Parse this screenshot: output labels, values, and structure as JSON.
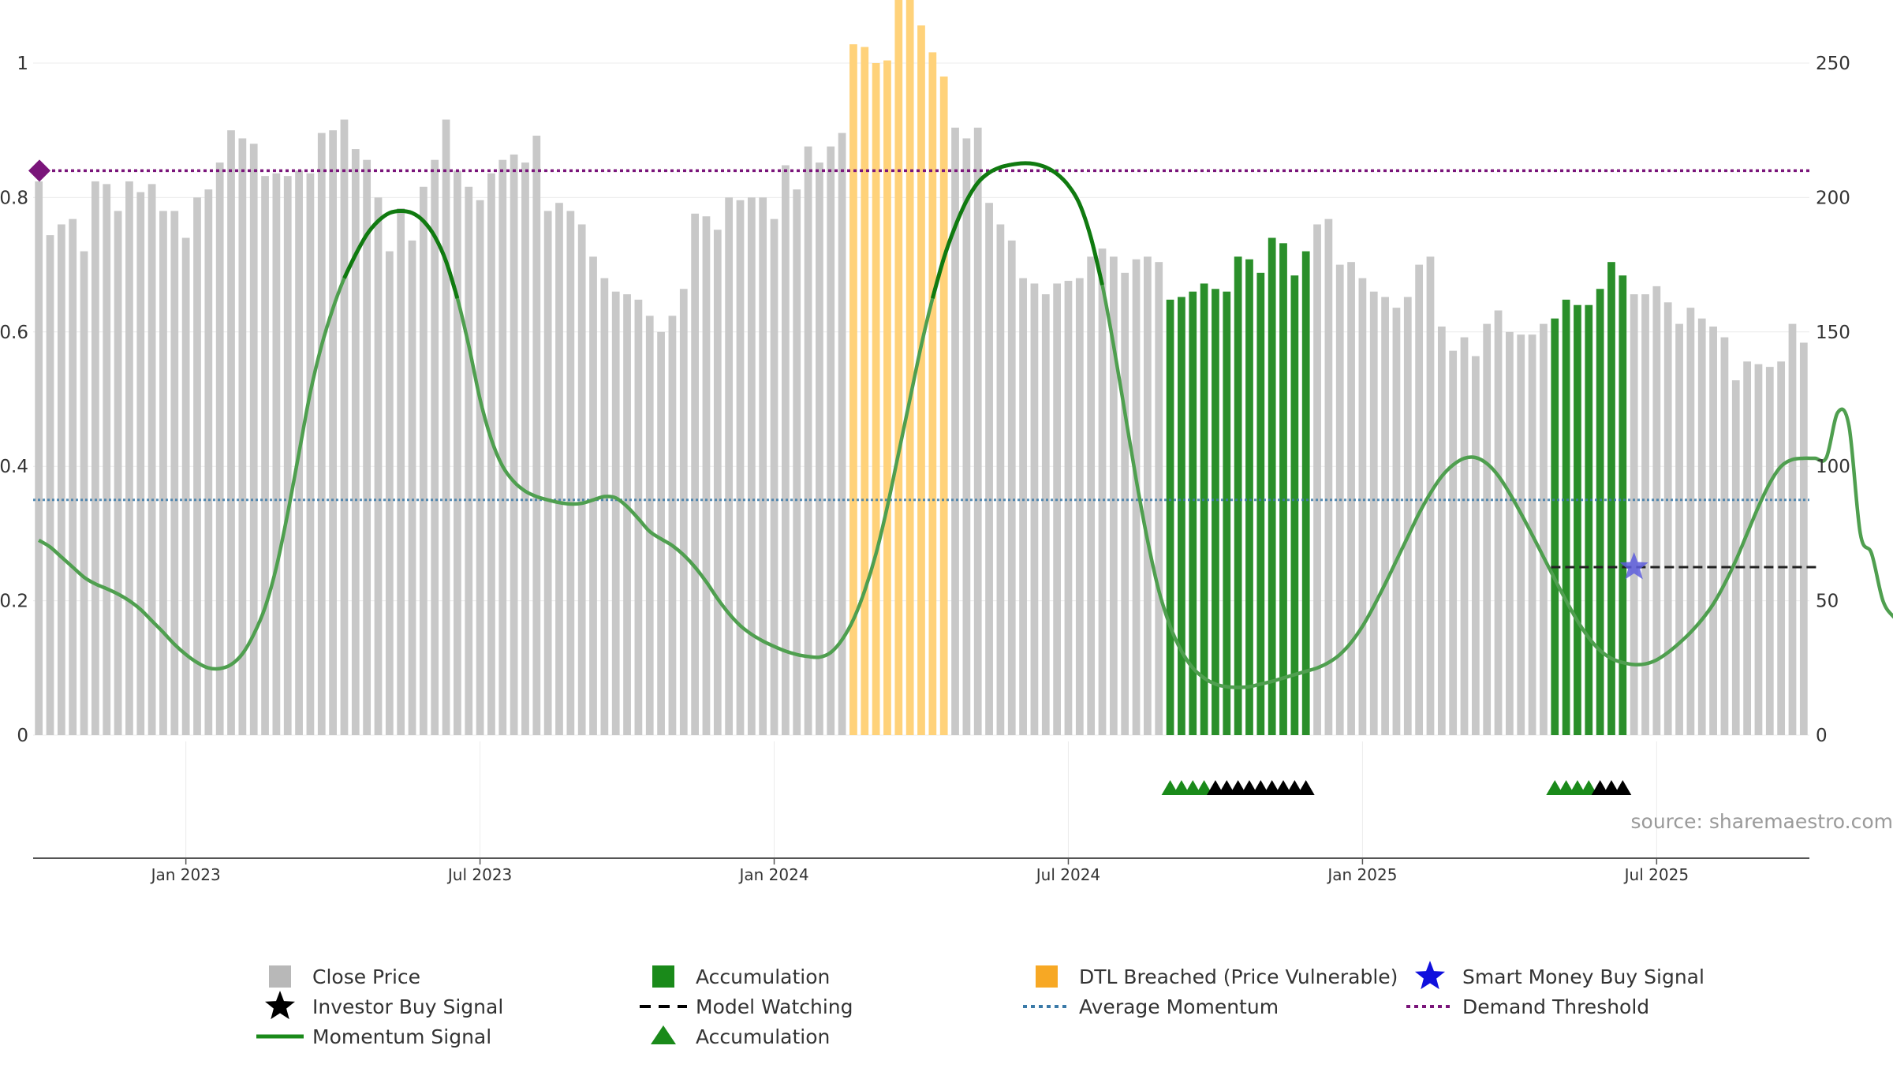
{
  "chart_data": {
    "type": "bar",
    "title": "",
    "x_tick_labels": [
      "Jan 2023",
      "Jul 2023",
      "Jan 2024",
      "Jul 2024",
      "Jan 2025",
      "Jul 2025"
    ],
    "y_left": {
      "ylim": [
        0,
        1
      ],
      "ticks": [
        "0",
        "0.2",
        "0.4",
        "0.6",
        "0.8",
        "1"
      ]
    },
    "y_right": {
      "ylim": [
        0,
        250
      ],
      "ticks": [
        "0",
        "50",
        "100",
        "150",
        "200",
        "250"
      ]
    },
    "close_price": [
      206,
      186,
      190,
      192,
      180,
      206,
      205,
      195,
      206,
      202,
      205,
      195,
      195,
      185,
      200,
      203,
      213,
      225,
      222,
      220,
      208,
      209,
      208,
      210,
      209,
      224,
      225,
      229,
      218,
      214,
      200,
      180,
      196,
      184,
      204,
      214,
      229,
      210,
      204,
      199,
      209,
      214,
      216,
      213,
      223,
      195,
      198,
      195,
      190,
      178,
      170,
      165,
      164,
      162,
      156,
      150,
      156,
      166,
      194,
      193,
      188,
      200,
      199,
      200,
      200,
      192,
      212,
      203,
      219,
      213,
      219,
      224,
      257,
      256,
      250,
      251,
      275,
      279,
      264,
      254,
      245,
      226,
      222,
      226,
      198,
      190,
      184,
      170,
      168,
      164,
      168,
      169,
      170,
      178,
      181,
      178,
      172,
      177,
      178,
      176,
      162,
      163,
      165,
      168,
      166,
      165,
      178,
      177,
      172,
      185,
      183,
      171,
      180,
      190,
      192,
      175,
      176,
      170,
      165,
      163,
      159,
      163,
      175,
      178,
      152,
      143,
      148,
      141,
      153,
      158,
      150,
      149,
      149,
      153,
      155,
      162,
      160,
      160,
      166,
      176,
      171,
      164,
      164,
      167,
      161,
      153,
      159,
      155,
      152,
      148,
      132,
      139,
      138,
      137,
      139,
      153,
      146
    ],
    "accumulation_ranges": [
      [
        100,
        112
      ],
      [
        134,
        140
      ]
    ],
    "dtl_breached_range": [
      72,
      80
    ],
    "momentum": [
      0.29,
      0.28,
      0.265,
      0.25,
      0.235,
      0.225,
      0.218,
      0.21,
      0.2,
      0.187,
      0.17,
      0.153,
      0.135,
      0.12,
      0.108,
      0.1,
      0.099,
      0.105,
      0.121,
      0.15,
      0.19,
      0.25,
      0.33,
      0.42,
      0.51,
      0.58,
      0.635,
      0.68,
      0.715,
      0.745,
      0.765,
      0.777,
      0.78,
      0.777,
      0.765,
      0.742,
      0.705,
      0.65,
      0.58,
      0.5,
      0.44,
      0.4,
      0.377,
      0.363,
      0.355,
      0.35,
      0.346,
      0.344,
      0.345,
      0.35,
      0.355,
      0.353,
      0.34,
      0.322,
      0.303,
      0.292,
      0.282,
      0.268,
      0.25,
      0.228,
      0.203,
      0.181,
      0.163,
      0.15,
      0.14,
      0.132,
      0.125,
      0.12,
      0.117,
      0.116,
      0.123,
      0.142,
      0.172,
      0.215,
      0.27,
      0.34,
      0.42,
      0.5,
      0.58,
      0.65,
      0.71,
      0.757,
      0.795,
      0.822,
      0.837,
      0.845,
      0.849,
      0.851,
      0.85,
      0.845,
      0.835,
      0.818,
      0.79,
      0.74,
      0.67,
      0.58,
      0.48,
      0.38,
      0.29,
      0.215,
      0.162,
      0.125,
      0.1,
      0.085,
      0.076,
      0.072,
      0.071,
      0.072,
      0.076,
      0.08,
      0.085,
      0.09,
      0.095,
      0.1,
      0.108,
      0.12,
      0.138,
      0.162,
      0.192,
      0.225,
      0.26,
      0.295,
      0.33,
      0.36,
      0.385,
      0.402,
      0.412,
      0.413,
      0.404,
      0.386,
      0.36,
      0.33,
      0.298,
      0.265,
      0.232,
      0.2,
      0.17,
      0.145,
      0.126,
      0.114,
      0.108,
      0.105,
      0.106,
      0.112,
      0.123,
      0.137,
      0.153,
      0.172,
      0.195,
      0.225,
      0.26,
      0.3,
      0.34,
      0.375,
      0.4,
      0.41,
      0.412,
      0.412,
      0.413,
      0.48,
      0.46,
      0.3,
      0.27,
      0.2,
      0.175,
      0.16,
      0.155
    ],
    "average_momentum": 0.35,
    "demand_threshold": 0.84,
    "model_watching": {
      "value": 0.25,
      "range": [
        134,
        157
      ]
    },
    "smart_money_buy_signal": {
      "index": 141,
      "value": 0.25
    },
    "accumulation_triangles": [
      100,
      101,
      102,
      103,
      134,
      135,
      136,
      137
    ],
    "investor_buy_triangles": [
      104,
      105,
      106,
      107,
      108,
      109,
      110,
      111,
      112,
      138,
      139,
      140
    ],
    "source_text": "source: sharemaestro.com",
    "legend": [
      {
        "label": "Close Price",
        "color": "#b8b8b8",
        "marker": "square"
      },
      {
        "label": "Investor Buy Signal",
        "color": "#000000",
        "marker": "star"
      },
      {
        "label": "Momentum Signal",
        "color": "#1a8a1a",
        "marker": "line"
      },
      {
        "label": "Accumulation",
        "color": "#1a8a1a",
        "marker": "square"
      },
      {
        "label": "Model Watching",
        "color": "#000000",
        "marker": "dash"
      },
      {
        "label": "Accumulation",
        "color": "#1a8a1a",
        "marker": "triangle"
      },
      {
        "label": "DTL Breached (Price Vulnerable)",
        "color": "#f7a824",
        "marker": "square"
      },
      {
        "label": "Average Momentum",
        "color": "#3a7aa8",
        "marker": "dot"
      },
      {
        "label": "Smart Money Buy Signal",
        "color": "#1010dd",
        "marker": "star"
      },
      {
        "label": "Demand Threshold",
        "color": "#7a157a",
        "marker": "dot"
      }
    ]
  }
}
